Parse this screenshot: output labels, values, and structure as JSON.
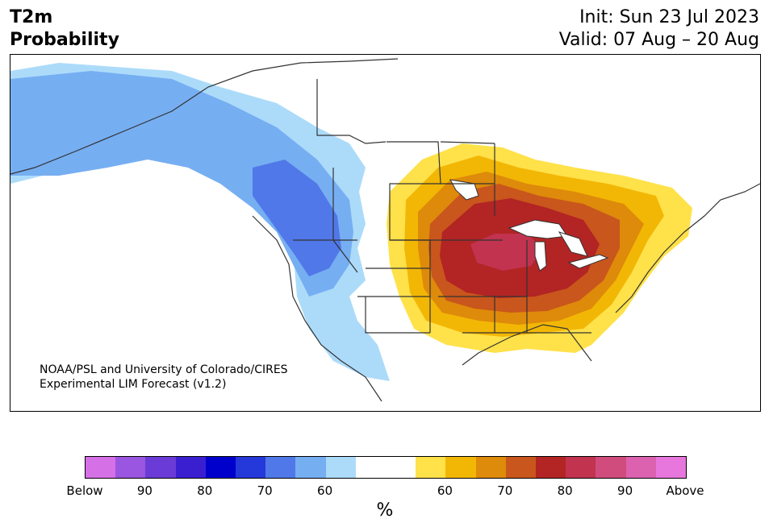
{
  "title": {
    "line1": "T2m",
    "line2": "Probability"
  },
  "init": {
    "line1": "Init: Sun 23 Jul 2023",
    "line2": "Valid: 07 Aug – 20 Aug"
  },
  "credit": {
    "line1": "NOAA/PSL and University of Colorado/CIRES",
    "line2": "Experimental LIM Forecast (v1.2)"
  },
  "colorbar": {
    "unit": "%",
    "colors": [
      "#d670e6",
      "#9a56e0",
      "#6a3bd6",
      "#3a1fd1",
      "#0000cc",
      "#2538d9",
      "#5078e8",
      "#76aef2",
      "#acdbfa",
      "#ffffff",
      "#ffffff",
      "#ffe14a",
      "#f2b705",
      "#de8a0a",
      "#c9561c",
      "#b32424",
      "#c1334f",
      "#cf4c7c",
      "#dc62b0",
      "#e777dc"
    ],
    "tick_labels": [
      "Below",
      "90",
      "80",
      "70",
      "60",
      "60",
      "70",
      "80",
      "90",
      "Above"
    ]
  },
  "legend_map": {
    "blue_levels": [
      "#acdbfa",
      "#76aef2",
      "#5078e8"
    ],
    "warm_levels": [
      "#ffe14a",
      "#f2b705",
      "#de8a0a",
      "#c9561c",
      "#b32424",
      "#c1334f"
    ]
  }
}
